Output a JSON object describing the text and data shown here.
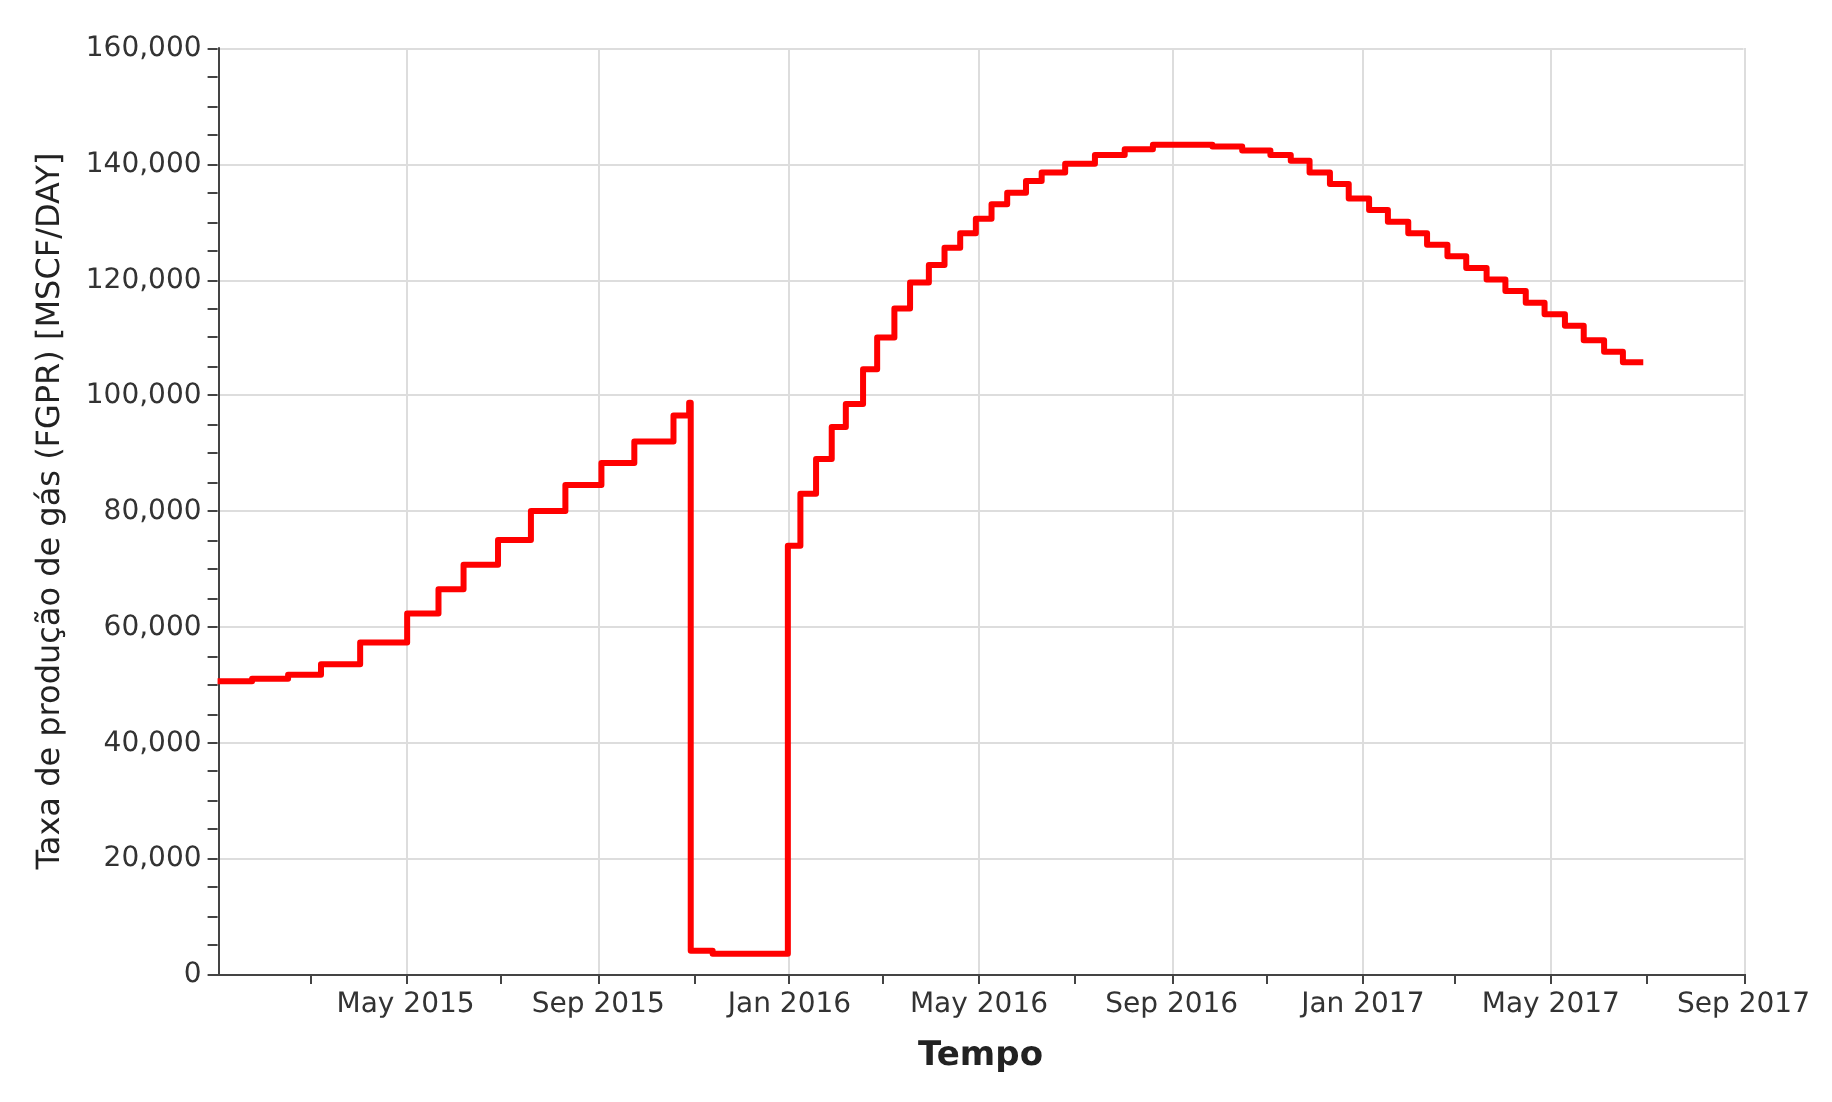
{
  "chart_data": {
    "type": "step",
    "xlabel": "Tempo",
    "ylabel": "Taxa de produção de gás (FGPR) [MSCF/DAY]",
    "xlim": [
      "2015-01-01",
      "2017-09-01"
    ],
    "xticks": [
      {
        "value": "2015-03",
        "label": null
      },
      {
        "value": "2015-05",
        "label": "May 2015"
      },
      {
        "value": "2015-07",
        "label": null
      },
      {
        "value": "2015-09",
        "label": "Sep 2015"
      },
      {
        "value": "2015-11",
        "label": null
      },
      {
        "value": "2016-01",
        "label": "Jan 2016"
      },
      {
        "value": "2016-03",
        "label": null
      },
      {
        "value": "2016-05",
        "label": "May 2016"
      },
      {
        "value": "2016-07",
        "label": null
      },
      {
        "value": "2016-09",
        "label": "Sep 2016"
      },
      {
        "value": "2016-11",
        "label": null
      },
      {
        "value": "2017-01",
        "label": "Jan 2017"
      },
      {
        "value": "2017-03",
        "label": null
      },
      {
        "value": "2017-05",
        "label": "May 2017"
      },
      {
        "value": "2017-07",
        "label": null
      },
      {
        "value": "2017-09",
        "label": "Sep 2017"
      }
    ],
    "ylim": [
      0,
      160000
    ],
    "yticks": [
      {
        "value": 0,
        "label": "0"
      },
      {
        "value": 5000,
        "label": null
      },
      {
        "value": 10000,
        "label": null
      },
      {
        "value": 15000,
        "label": null
      },
      {
        "value": 20000,
        "label": "20,000"
      },
      {
        "value": 25000,
        "label": null
      },
      {
        "value": 30000,
        "label": null
      },
      {
        "value": 35000,
        "label": null
      },
      {
        "value": 40000,
        "label": "40,000"
      },
      {
        "value": 45000,
        "label": null
      },
      {
        "value": 50000,
        "label": null
      },
      {
        "value": 55000,
        "label": null
      },
      {
        "value": 60000,
        "label": "60,000"
      },
      {
        "value": 65000,
        "label": null
      },
      {
        "value": 70000,
        "label": null
      },
      {
        "value": 75000,
        "label": null
      },
      {
        "value": 80000,
        "label": "80,000"
      },
      {
        "value": 85000,
        "label": null
      },
      {
        "value": 90000,
        "label": null
      },
      {
        "value": 95000,
        "label": null
      },
      {
        "value": 100000,
        "label": "100,000"
      },
      {
        "value": 105000,
        "label": null
      },
      {
        "value": 110000,
        "label": null
      },
      {
        "value": 115000,
        "label": null
      },
      {
        "value": 120000,
        "label": "120,000"
      },
      {
        "value": 125000,
        "label": null
      },
      {
        "value": 130000,
        "label": null
      },
      {
        "value": 135000,
        "label": null
      },
      {
        "value": 140000,
        "label": "140,000"
      },
      {
        "value": 145000,
        "label": null
      },
      {
        "value": 150000,
        "label": null
      },
      {
        "value": 155000,
        "label": null
      },
      {
        "value": 160000,
        "label": "160,000"
      }
    ],
    "grid": true,
    "x": [
      "2015-01-01",
      "2015-01-23",
      "2015-02-15",
      "2015-03-08",
      "2015-04-02",
      "2015-05-02",
      "2015-05-22",
      "2015-06-07",
      "2015-06-29",
      "2015-07-20",
      "2015-08-11",
      "2015-09-03",
      "2015-09-24",
      "2015-10-19",
      "2015-10-29",
      "2015-10-30",
      "2015-11-13",
      "2015-12-31",
      "2016-01-08",
      "2016-01-18",
      "2016-01-28",
      "2016-02-06",
      "2016-02-17",
      "2016-02-26",
      "2016-03-08",
      "2016-03-18",
      "2016-03-30",
      "2016-04-09",
      "2016-04-19",
      "2016-04-29",
      "2016-05-09",
      "2016-05-19",
      "2016-05-31",
      "2016-06-10",
      "2016-06-25",
      "2016-07-14",
      "2016-08-02",
      "2016-08-20",
      "2016-09-27",
      "2016-10-16",
      "2016-11-03",
      "2016-11-16",
      "2016-11-28",
      "2016-12-11",
      "2016-12-23",
      "2017-01-05",
      "2017-01-17",
      "2017-01-30",
      "2017-02-11",
      "2017-02-24",
      "2017-03-08",
      "2017-03-21",
      "2017-04-02",
      "2017-04-15",
      "2017-04-27",
      "2017-05-10",
      "2017-05-22",
      "2017-06-04",
      "2017-06-16",
      "2017-06-29"
    ],
    "series": [
      {
        "color": "#ff0000",
        "values": [
          50600,
          51000,
          51700,
          53500,
          57300,
          62300,
          66500,
          70700,
          75000,
          80000,
          84500,
          88300,
          92000,
          96500,
          98700,
          4000,
          3500,
          74000,
          83000,
          89000,
          94500,
          98500,
          104500,
          110000,
          115000,
          119500,
          122500,
          125500,
          128000,
          130500,
          133000,
          135000,
          137000,
          138500,
          140000,
          141500,
          142500,
          143300,
          143000,
          142300,
          141500,
          140500,
          138500,
          136500,
          134000,
          132000,
          130000,
          128000,
          126000,
          124000,
          122000,
          120000,
          118000,
          116000,
          114000,
          112000,
          109500,
          107500,
          105700,
          105700
        ]
      }
    ]
  }
}
